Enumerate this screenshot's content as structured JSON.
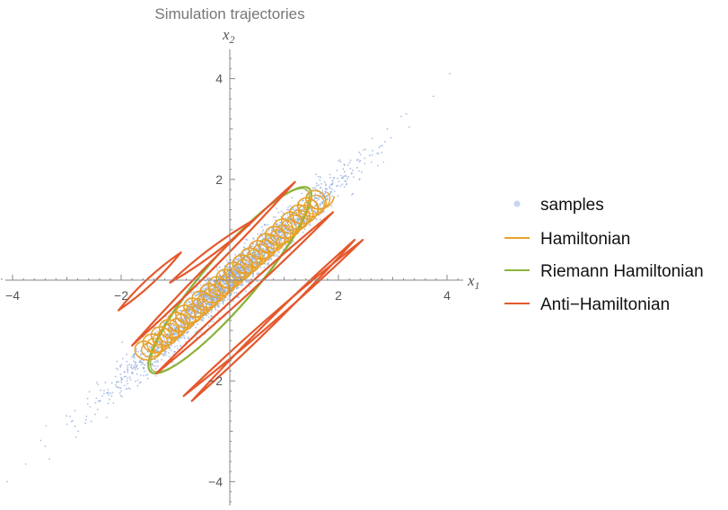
{
  "chart_data": {
    "type": "scatter",
    "title": "Simulation trajectories",
    "xlabel": "x1",
    "ylabel": "x2",
    "xlim": [
      -4.2,
      4.2
    ],
    "ylim": [
      -4.5,
      4.5
    ],
    "xticks": [
      -4,
      -2,
      2,
      4
    ],
    "yticks": [
      -4,
      -2,
      2,
      4
    ],
    "xtick_labels": [
      "−4",
      "−2",
      "2",
      "4"
    ],
    "ytick_labels": [
      "−4",
      "−2",
      "2",
      "4"
    ],
    "grid": false,
    "legend_placement": "right",
    "series": [
      {
        "name": "samples",
        "kind": "points",
        "color": "#8FAADC",
        "description_values": {
          "mean": [
            0,
            0
          ],
          "sd_x1": 1.0,
          "sd_x2": 1.0,
          "correlation": 0.98
        },
        "outlier_points": [
          [
            4.05,
            4.1
          ],
          [
            3.75,
            3.65
          ],
          [
            3.25,
            3.3
          ],
          [
            -4.1,
            -4.0
          ],
          [
            -3.4,
            -3.3
          ],
          [
            2.9,
            3.0
          ],
          [
            -2.85,
            -2.9
          ]
        ]
      },
      {
        "name": "Hamiltonian",
        "kind": "line",
        "color": "#E8A22A",
        "trajectory_envelope": {
          "x1_range": [
            -1.65,
            1.75
          ],
          "x2_range": [
            -1.55,
            1.6
          ]
        }
      },
      {
        "name": "Riemann Hamiltonian",
        "kind": "line",
        "color": "#8DB33A",
        "ellipse": {
          "center": [
            0,
            0
          ],
          "x1_extreme": [
            -1.45,
            1.55
          ],
          "x2_extreme": [
            -1.85,
            1.85
          ]
        }
      },
      {
        "name": "Anti−Hamiltonian",
        "kind": "line",
        "color": "#E5582C",
        "tube_endpoints": [
          [
            [
              -1.8,
              -1.3
            ],
            [
              1.2,
              1.95
            ]
          ],
          [
            [
              -2.05,
              -0.6
            ],
            [
              -0.9,
              0.55
            ]
          ],
          [
            [
              -1.1,
              -0.05
            ],
            [
              0.45,
              1.2
            ]
          ],
          [
            [
              -1.35,
              -1.85
            ],
            [
              1.9,
              1.35
            ]
          ],
          [
            [
              -0.85,
              -2.3
            ],
            [
              2.45,
              0.8
            ]
          ],
          [
            [
              -0.7,
              -2.4
            ],
            [
              2.3,
              0.8
            ]
          ]
        ]
      }
    ]
  }
}
